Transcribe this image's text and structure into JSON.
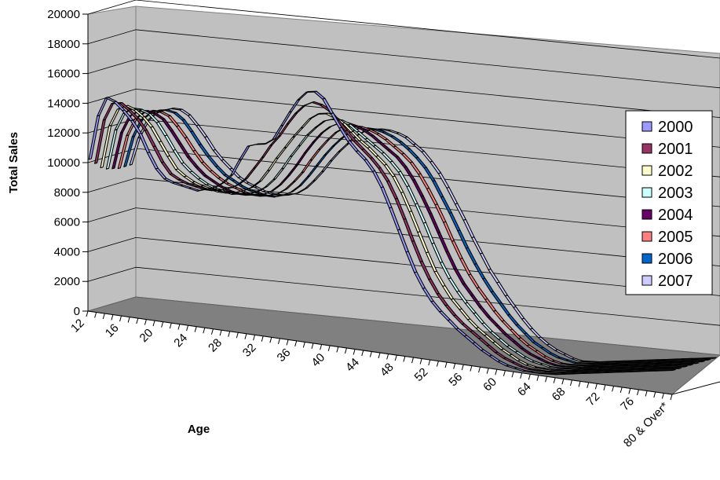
{
  "chart_data": {
    "type": "line",
    "view": "3d-ribbon",
    "title": "",
    "xlabel": "Age",
    "ylabel": "Total Sales",
    "ylim": [
      0,
      20000
    ],
    "y_ticks": [
      0,
      2000,
      4000,
      6000,
      8000,
      10000,
      12000,
      14000,
      16000,
      18000,
      20000
    ],
    "x_tick_labels": [
      "12",
      "16",
      "20",
      "24",
      "28",
      "32",
      "36",
      "40",
      "44",
      "48",
      "52",
      "56",
      "60",
      "64",
      "68",
      "72",
      "76",
      "80 & Over*"
    ],
    "grid": true,
    "legend_position": "right",
    "series": [
      {
        "name": "2000",
        "color": "#9999ff",
        "values": [
          10200,
          13200,
          14500,
          14300,
          13800,
          13200,
          12400,
          11200,
          10200,
          9600,
          9400,
          9300,
          9200,
          9100,
          9300,
          9500,
          9900,
          10500,
          11600,
          12600,
          12800,
          12900,
          13300,
          14300,
          15300,
          16200,
          16800,
          16900,
          16500,
          15600,
          14700,
          13900,
          13300,
          12800,
          12100,
          11100,
          9800,
          8400,
          7000,
          5700,
          4700,
          3900,
          3300,
          2800,
          2300,
          1900,
          1500,
          1100,
          800,
          500,
          300,
          200,
          100,
          100,
          100,
          150,
          200,
          300,
          400,
          500,
          600,
          700,
          800,
          900,
          1000,
          1100,
          1200,
          1300,
          1400,
          1500,
          1600
        ]
      },
      {
        "name": "2001",
        "color": "#993366",
        "values": [
          9800,
          12800,
          14000,
          14100,
          13700,
          13200,
          12500,
          11500,
          10500,
          9800,
          9500,
          9300,
          9200,
          9100,
          9100,
          9200,
          9400,
          9700,
          10200,
          11000,
          11800,
          12700,
          13400,
          14300,
          15100,
          15700,
          16000,
          15900,
          15600,
          15000,
          14400,
          13800,
          13300,
          12800,
          12200,
          11400,
          10300,
          9000,
          7600,
          6300,
          5200,
          4300,
          3600,
          3000,
          2500,
          2100,
          1700,
          1300,
          900,
          600,
          400,
          200,
          100,
          100,
          100,
          150,
          200,
          300,
          400,
          500,
          600,
          700,
          800,
          900,
          1000,
          1100,
          1200,
          1300,
          1400,
          1500,
          1600
        ]
      },
      {
        "name": "2002",
        "color": "#ffffcc",
        "values": [
          9400,
          12300,
          13500,
          13800,
          13600,
          13200,
          12600,
          11700,
          10800,
          10000,
          9600,
          9300,
          9100,
          9000,
          8900,
          8900,
          9000,
          9200,
          9500,
          10000,
          10800,
          11700,
          12500,
          13300,
          14000,
          14700,
          15100,
          15200,
          15000,
          14700,
          14200,
          13700,
          13300,
          12800,
          12300,
          11600,
          10600,
          9400,
          8100,
          6800,
          5600,
          4700,
          3900,
          3300,
          2700,
          2200,
          1800,
          1400,
          1000,
          700,
          400,
          200,
          100,
          100,
          100,
          150,
          200,
          300,
          400,
          500,
          600,
          700,
          800,
          900,
          1000,
          1100,
          1200,
          1300,
          1400,
          1500,
          1600
        ]
      },
      {
        "name": "2003",
        "color": "#ccffff",
        "values": [
          9200,
          11900,
          13100,
          13500,
          13500,
          13300,
          12800,
          12000,
          11100,
          10300,
          9800,
          9400,
          9100,
          8900,
          8800,
          8700,
          8800,
          8900,
          9100,
          9500,
          10100,
          10900,
          11800,
          12600,
          13400,
          14000,
          14500,
          14700,
          14700,
          14500,
          14100,
          13700,
          13300,
          12900,
          12400,
          11800,
          10900,
          9800,
          8600,
          7300,
          6100,
          5100,
          4300,
          3600,
          3000,
          2400,
          1900,
          1500,
          1100,
          800,
          500,
          300,
          200,
          100,
          100,
          150,
          200,
          300,
          400,
          500,
          600,
          700,
          800,
          900,
          1000,
          1100,
          1200,
          1300,
          1400,
          1500,
          1600
        ]
      },
      {
        "name": "2004",
        "color": "#660066",
        "values": [
          9100,
          11600,
          12800,
          13200,
          13300,
          13200,
          12900,
          12200,
          11400,
          10600,
          10000,
          9500,
          9200,
          8900,
          8700,
          8600,
          8600,
          8700,
          8800,
          9100,
          9600,
          10300,
          11100,
          12000,
          12800,
          13500,
          14000,
          14300,
          14400,
          14300,
          14100,
          13800,
          13400,
          13000,
          12600,
          12000,
          11200,
          10200,
          9100,
          7900,
          6700,
          5600,
          4700,
          4000,
          3300,
          2700,
          2200,
          1700,
          1300,
          900,
          600,
          400,
          200,
          100,
          100,
          150,
          200,
          300,
          400,
          500,
          600,
          700,
          800,
          900,
          1000,
          1100,
          1200,
          1300,
          1400,
          1500,
          1600
        ]
      },
      {
        "name": "2005",
        "color": "#ff8080",
        "values": [
          9000,
          11300,
          12500,
          13000,
          13200,
          13200,
          13000,
          12400,
          11700,
          10900,
          10200,
          9700,
          9300,
          9000,
          8800,
          8600,
          8500,
          8500,
          8600,
          8800,
          9200,
          9800,
          10500,
          11400,
          12200,
          12900,
          13500,
          13900,
          14100,
          14100,
          14000,
          13800,
          13500,
          13100,
          12700,
          12200,
          11500,
          10600,
          9600,
          8500,
          7300,
          6200,
          5200,
          4400,
          3700,
          3000,
          2400,
          1900,
          1400,
          1000,
          700,
          400,
          200,
          100,
          100,
          150,
          200,
          300,
          400,
          500,
          600,
          700,
          800,
          900,
          1000,
          1100,
          1200,
          1300,
          1400,
          1500,
          1600
        ]
      },
      {
        "name": "2006",
        "color": "#0066cc",
        "values": [
          9000,
          11100,
          12300,
          12800,
          13100,
          13200,
          13100,
          12700,
          12000,
          11200,
          10500,
          9900,
          9400,
          9100,
          8800,
          8600,
          8500,
          8400,
          8400,
          8600,
          8900,
          9400,
          10100,
          10900,
          11700,
          12400,
          13000,
          13500,
          13800,
          13900,
          13900,
          13800,
          13600,
          13300,
          12900,
          12400,
          11800,
          11000,
          10000,
          9000,
          7900,
          6800,
          5800,
          4900,
          4100,
          3400,
          2700,
          2100,
          1600,
          1100,
          800,
          500,
          300,
          200,
          100,
          150,
          200,
          300,
          400,
          500,
          600,
          700,
          800,
          900,
          1000,
          1100,
          1200,
          1300,
          1400,
          1500,
          1600
        ]
      },
      {
        "name": "2007",
        "color": "#ccccff",
        "values": [
          9000,
          10900,
          12100,
          12700,
          13000,
          13200,
          13200,
          12900,
          12300,
          11600,
          10800,
          10200,
          9700,
          9200,
          8900,
          8700,
          8500,
          8400,
          8400,
          8500,
          8700,
          9100,
          9700,
          10400,
          11200,
          11900,
          12500,
          13100,
          13500,
          13700,
          13800,
          13800,
          13700,
          13500,
          13100,
          12700,
          12100,
          11400,
          10500,
          9500,
          8500,
          7400,
          6400,
          5400,
          4600,
          3800,
          3100,
          2400,
          1800,
          1300,
          900,
          600,
          400,
          200,
          100,
          150,
          200,
          300,
          400,
          500,
          600,
          700,
          800,
          900,
          1000,
          1100,
          1200,
          1300,
          1400,
          1500,
          1600
        ]
      }
    ]
  }
}
